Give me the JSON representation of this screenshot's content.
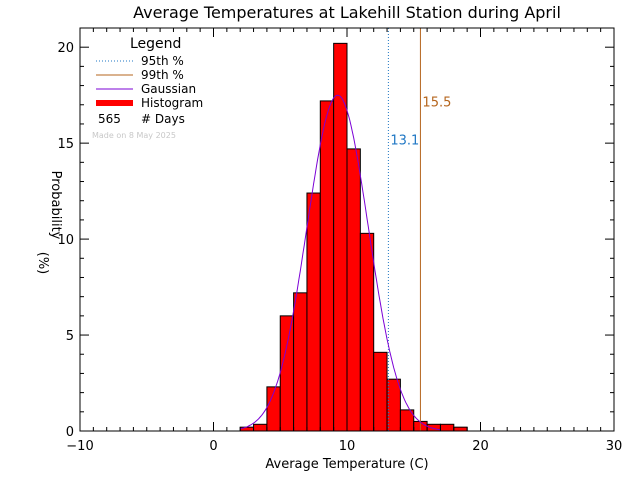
{
  "chart_data": {
    "type": "bar",
    "title": "Average Temperatures at Lakehill Station during April",
    "xlabel": "Average Temperature (C)",
    "ylabel_top": "Probability",
    "ylabel_bottom": "(%)",
    "xlim": [
      -10,
      30
    ],
    "ylim": [
      0,
      21
    ],
    "x_ticks": [
      -10,
      0,
      10,
      20,
      30
    ],
    "y_ticks": [
      0,
      5,
      10,
      15,
      20
    ],
    "bin_width": 1,
    "bins": [
      {
        "x0": 2,
        "value": 0.2
      },
      {
        "x0": 3,
        "value": 0.35
      },
      {
        "x0": 4,
        "value": 2.3
      },
      {
        "x0": 5,
        "value": 6.0
      },
      {
        "x0": 6,
        "value": 7.2
      },
      {
        "x0": 7,
        "value": 12.4
      },
      {
        "x0": 8,
        "value": 17.2
      },
      {
        "x0": 9,
        "value": 20.2
      },
      {
        "x0": 10,
        "value": 14.7
      },
      {
        "x0": 11,
        "value": 10.3
      },
      {
        "x0": 12,
        "value": 4.1
      },
      {
        "x0": 13,
        "value": 2.7
      },
      {
        "x0": 14,
        "value": 1.1
      },
      {
        "x0": 15,
        "value": 0.5
      },
      {
        "x0": 16,
        "value": 0.35
      },
      {
        "x0": 17,
        "value": 0.35
      },
      {
        "x0": 18,
        "value": 0.2
      }
    ],
    "gaussian": {
      "mean": 9.3,
      "sd": 2.3,
      "peak": 17.5
    },
    "percentiles": [
      {
        "name": "95th %",
        "value": 13.1,
        "label": "13.1",
        "color": "#1f77c4",
        "style": "dotted"
      },
      {
        "name": "99th %",
        "value": 15.5,
        "label": "15.5",
        "color": "#b5651d",
        "style": "solid"
      }
    ],
    "legend": {
      "title": "Legend",
      "items": [
        {
          "label": "95th %",
          "kind": "dotted",
          "color": "#1f77c4"
        },
        {
          "label": "99th %",
          "kind": "solid",
          "color": "#b5651d"
        },
        {
          "label": "Gaussian",
          "kind": "solid",
          "color": "#7b00d6"
        },
        {
          "label": "Histogram",
          "kind": "thick",
          "color": "#ff0000"
        }
      ],
      "days_count": "565",
      "days_label": "# Days",
      "made_on": "Made on 8 May 2025",
      "placement": "top-left"
    },
    "colors": {
      "bar_fill": "#ff0000",
      "bar_edge": "#000000",
      "gaussian": "#7b00d6"
    }
  }
}
